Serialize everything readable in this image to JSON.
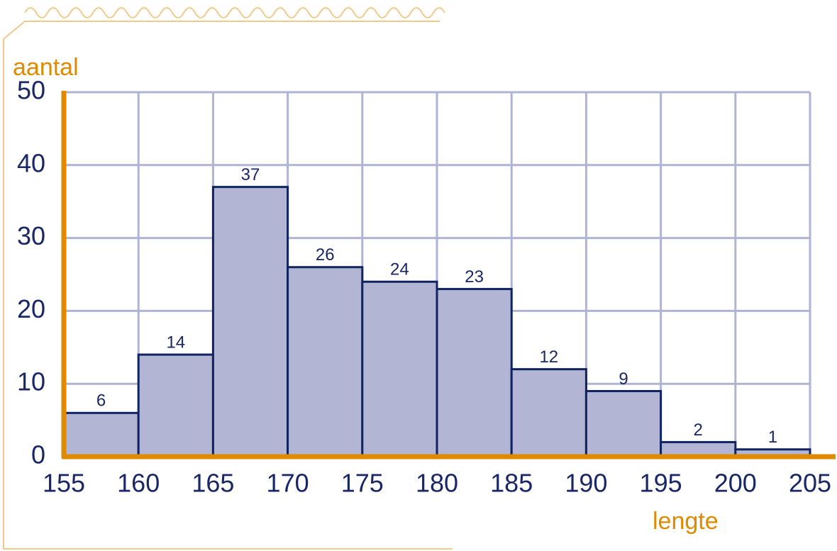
{
  "chart_data": {
    "type": "histogram",
    "x_label": "lengte",
    "y_label": "aantal",
    "bins": [
      155,
      160,
      165,
      170,
      175,
      180,
      185,
      190,
      195,
      200,
      205
    ],
    "values": [
      6,
      14,
      37,
      26,
      24,
      23,
      12,
      9,
      2,
      1
    ],
    "color": "#b2b6d4",
    "edge_color": "#0f2461",
    "xlim": [
      155,
      205
    ],
    "ylim": [
      0,
      50
    ],
    "xticks": [
      155,
      160,
      165,
      170,
      175,
      180,
      185,
      190,
      195,
      200,
      205
    ],
    "yticks": [
      0,
      10,
      20,
      30,
      40,
      50
    ],
    "grid": true
  }
}
